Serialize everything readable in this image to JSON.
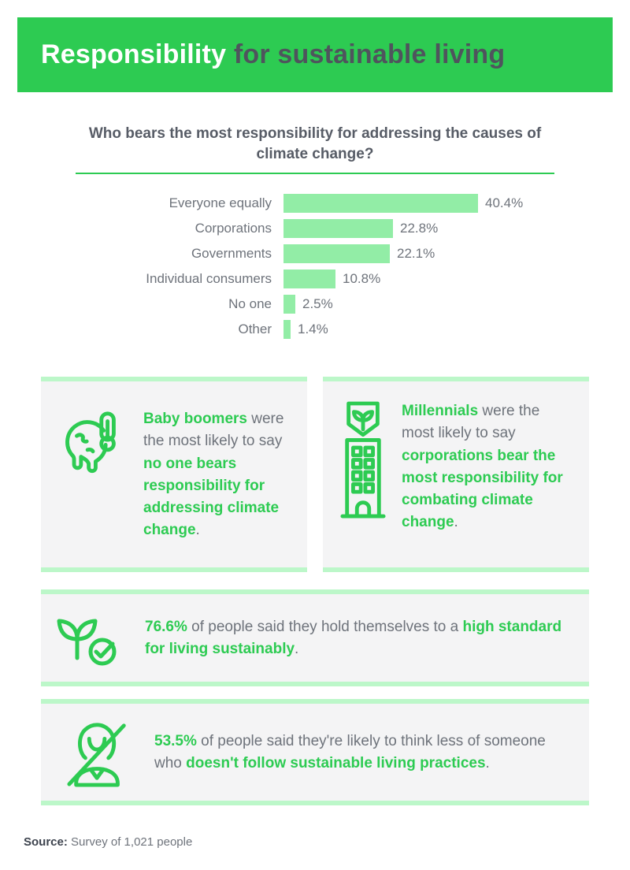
{
  "header": {
    "title_highlight": "Responsibility",
    "title_rest": " for sustainable living"
  },
  "chart_data": {
    "type": "bar",
    "orientation": "horizontal",
    "title": "Who bears the most responsibility for addressing the causes of climate change?",
    "categories": [
      "Everyone equally",
      "Corporations",
      "Governments",
      "Individual consumers",
      "No one",
      "Other"
    ],
    "values": [
      40.4,
      22.8,
      22.1,
      10.8,
      2.5,
      1.4
    ],
    "value_labels": [
      "40.4%",
      "22.8%",
      "22.1%",
      "10.8%",
      "2.5%",
      "1.4%"
    ],
    "xlabel": "",
    "ylabel": "",
    "xlim": [
      0,
      45
    ],
    "grid": false,
    "legend": "none",
    "bar_color": "#92eda6"
  },
  "cards": {
    "boomers": {
      "icon": "melting-earth-thermometer-icon",
      "segments": [
        {
          "style": "green",
          "text": "Baby boomers"
        },
        {
          "style": "gray",
          "text": " were the most likely to say "
        },
        {
          "style": "green",
          "text": "no one bears responsibility for addressing climate change"
        },
        {
          "style": "gray",
          "text": "."
        }
      ]
    },
    "millennials": {
      "icon": "building-sprout-icon",
      "segments": [
        {
          "style": "green",
          "text": "Millennials"
        },
        {
          "style": "gray",
          "text": " were the most likely to say "
        },
        {
          "style": "green",
          "text": "corporations bear the most responsibility for combating climate change"
        },
        {
          "style": "gray",
          "text": "."
        }
      ]
    },
    "high_standard": {
      "icon": "plant-check-icon",
      "segments": [
        {
          "style": "green",
          "text": "76.6%"
        },
        {
          "style": "gray",
          "text": " of people said they hold themselves to a "
        },
        {
          "style": "green",
          "text": "high standard for living sustainably"
        },
        {
          "style": "gray",
          "text": "."
        }
      ]
    },
    "think_less": {
      "icon": "person-slash-icon",
      "segments": [
        {
          "style": "green",
          "text": "53.5%"
        },
        {
          "style": "gray",
          "text": " of people said they're likely to think less of someone who "
        },
        {
          "style": "green",
          "text": "doesn't follow sustainable living practices"
        },
        {
          "style": "gray",
          "text": "."
        }
      ]
    }
  },
  "footer": {
    "source_label": "Source:",
    "source_text": " Survey of 1,021 people"
  },
  "colors": {
    "brand_green": "#2dcb52",
    "bar_green": "#92eda6",
    "border_green": "#bcf7c9",
    "card_bg": "#f4f4f5",
    "text_gray": "#6e737b",
    "text_dark": "#4f545d"
  }
}
